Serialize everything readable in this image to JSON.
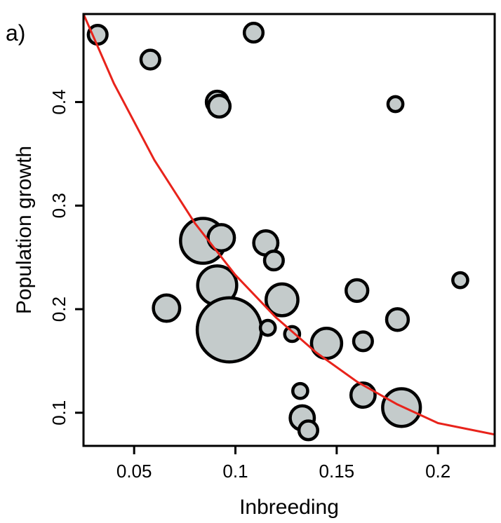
{
  "panel_label": "a)",
  "chart_data": {
    "type": "scatter",
    "xlabel": "Inbreeding",
    "ylabel": "Population growth",
    "xlim": [
      0.025,
      0.228
    ],
    "ylim": [
      0.068,
      0.485
    ],
    "x_ticks": [
      0.05,
      0.1,
      0.15,
      0.2
    ],
    "x_tick_labels": [
      "0.05",
      "0.1",
      "0.15",
      "0.2"
    ],
    "y_ticks": [
      0.1,
      0.2,
      0.3,
      0.4
    ],
    "y_tick_labels": [
      "0.1",
      "0.2",
      "0.3",
      "0.4"
    ],
    "grid": false,
    "legend": "none",
    "point_fill": "#c4cbcb",
    "point_edge": "#000000",
    "curve_color": "#e8231b",
    "points": [
      {
        "x": 0.032,
        "y": 0.465,
        "size": 2
      },
      {
        "x": 0.058,
        "y": 0.441,
        "size": 2
      },
      {
        "x": 0.109,
        "y": 0.467,
        "size": 2
      },
      {
        "x": 0.091,
        "y": 0.4,
        "size": 3
      },
      {
        "x": 0.092,
        "y": 0.396,
        "size": 3
      },
      {
        "x": 0.179,
        "y": 0.398,
        "size": 1
      },
      {
        "x": 0.084,
        "y": 0.266,
        "size": 18
      },
      {
        "x": 0.093,
        "y": 0.269,
        "size": 5
      },
      {
        "x": 0.115,
        "y": 0.264,
        "size": 4
      },
      {
        "x": 0.119,
        "y": 0.247,
        "size": 2
      },
      {
        "x": 0.091,
        "y": 0.223,
        "size": 13
      },
      {
        "x": 0.066,
        "y": 0.201,
        "size": 5
      },
      {
        "x": 0.123,
        "y": 0.209,
        "size": 8
      },
      {
        "x": 0.16,
        "y": 0.218,
        "size": 3
      },
      {
        "x": 0.211,
        "y": 0.228,
        "size": 1
      },
      {
        "x": 0.18,
        "y": 0.19,
        "size": 3
      },
      {
        "x": 0.097,
        "y": 0.18,
        "size": 40
      },
      {
        "x": 0.116,
        "y": 0.182,
        "size": 1
      },
      {
        "x": 0.128,
        "y": 0.176,
        "size": 1
      },
      {
        "x": 0.145,
        "y": 0.167,
        "size": 7
      },
      {
        "x": 0.163,
        "y": 0.169,
        "size": 2
      },
      {
        "x": 0.132,
        "y": 0.121,
        "size": 1
      },
      {
        "x": 0.163,
        "y": 0.117,
        "size": 4
      },
      {
        "x": 0.182,
        "y": 0.105,
        "size": 12
      },
      {
        "x": 0.133,
        "y": 0.095,
        "size": 4
      },
      {
        "x": 0.136,
        "y": 0.083,
        "size": 2
      }
    ],
    "curve": {
      "x": [
        0.025,
        0.04,
        0.06,
        0.08,
        0.1,
        0.12,
        0.14,
        0.16,
        0.18,
        0.2,
        0.228
      ],
      "y": [
        0.485,
        0.418,
        0.344,
        0.283,
        0.233,
        0.192,
        0.158,
        0.13,
        0.108,
        0.09,
        0.079
      ]
    }
  }
}
